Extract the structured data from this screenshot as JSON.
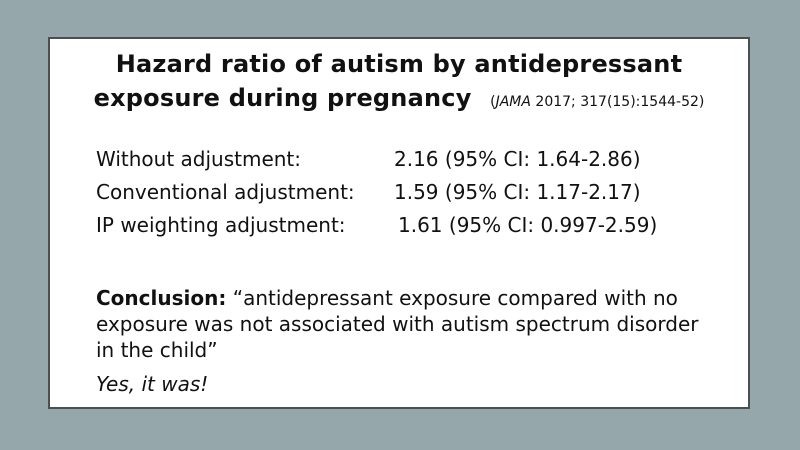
{
  "slide": {
    "title_line_1": "Hazard ratio of autism by antidepressant",
    "title_line_2": "exposure during pregnancy",
    "citation_journal": "JAMA",
    "citation_rest": "2017; 317(15):1544-52)",
    "citation_open_paren": "(",
    "results": [
      {
        "label": "Without adjustment:",
        "value": "2.16 (95% CI: 1.64-2.86)"
      },
      {
        "label": "Conventional adjustment:",
        "value": "1.59 (95% CI: 1.17-2.17)"
      },
      {
        "label": "IP weighting adjustment:",
        "value": "1.61 (95% CI: 0.997-2.59)"
      }
    ],
    "conclusion_label": "Conclusion:",
    "conclusion_text": "“antidepressant exposure compared with no exposure was not associated with autism spectrum disorder in the child”",
    "rebuttal": "Yes, it was!"
  }
}
